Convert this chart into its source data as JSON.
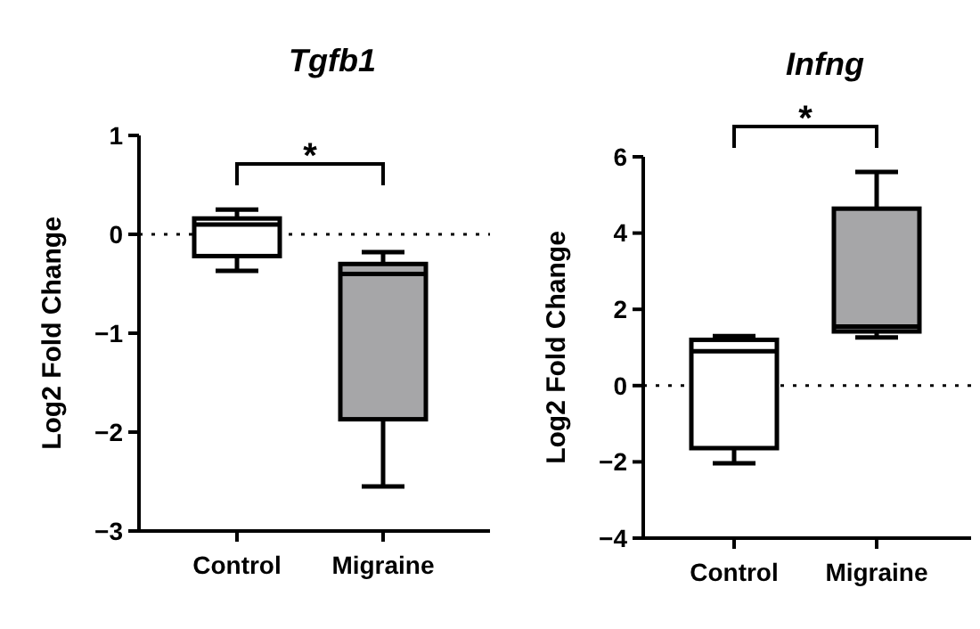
{
  "chart_data": [
    {
      "type": "box",
      "title": "Tgfb1",
      "ylabel": "Log2 Fold Change",
      "categories": [
        "Control",
        "Migraine"
      ],
      "colors": [
        "#ffffff",
        "#a6a6a8"
      ],
      "boxes": [
        {
          "low": -0.37,
          "q1": -0.22,
          "median": 0.1,
          "q3": 0.16,
          "high": 0.25
        },
        {
          "low": -2.55,
          "q1": -1.87,
          "median": -0.4,
          "q3": -0.3,
          "high": -0.18
        }
      ],
      "ylim": [
        -3,
        1
      ],
      "yticks": [
        -3,
        -2,
        -1,
        0,
        1
      ],
      "ref_lines": [
        {
          "axis": "y",
          "value": 0,
          "line_style": "dotted"
        }
      ],
      "annotations": [
        "*"
      ]
    },
    {
      "type": "box",
      "title": "Infng",
      "ylabel": "Log2 Fold Change",
      "categories": [
        "Control",
        "Migraine"
      ],
      "colors": [
        "#ffffff",
        "#a6a6a8"
      ],
      "boxes": [
        {
          "low": -2.04,
          "q1": -1.64,
          "median": 0.9,
          "q3": 1.2,
          "high": 1.3
        },
        {
          "low": 1.26,
          "q1": 1.42,
          "median": 1.55,
          "q3": 4.64,
          "high": 5.6
        }
      ],
      "ylim": [
        -4,
        6
      ],
      "yticks": [
        -4,
        -2,
        0,
        2,
        4,
        6
      ],
      "ref_lines": [
        {
          "axis": "y",
          "value": 0,
          "line_style": "dotted"
        }
      ],
      "annotations": [
        "*"
      ]
    }
  ]
}
